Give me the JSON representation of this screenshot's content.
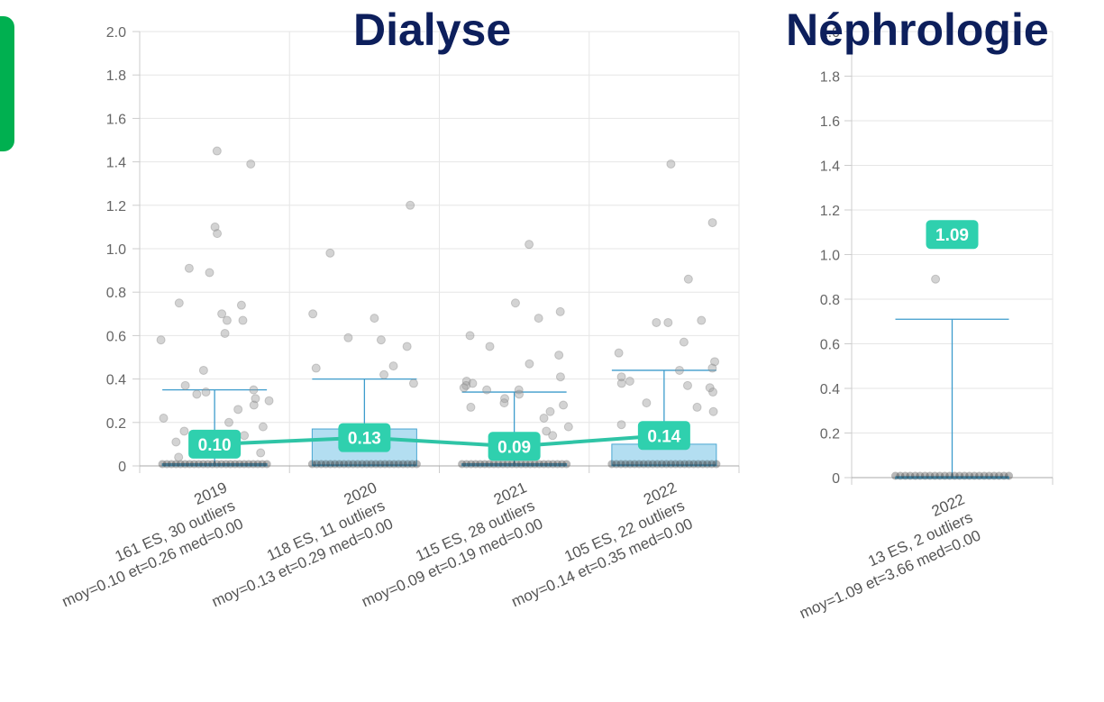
{
  "chart_data": [
    {
      "type": "box",
      "title": "Dialyse",
      "ylim": [
        0,
        2.0
      ],
      "yticks": [
        "0",
        "0.2",
        "0.4",
        "0.6",
        "0.8",
        "1.0",
        "1.2",
        "1.4",
        "1.6",
        "1.8",
        "2.0"
      ],
      "grid": true,
      "categories": [
        {
          "year": "2019",
          "line1": "161 ES, 30 outliers",
          "line2": "moy=0.10 et=0.26 med=0.00",
          "mean": 0.1,
          "mean_label": "0.10",
          "box_q3": 0.01,
          "whisker_high": 0.35,
          "outliers": [
            0.75,
            0.74,
            0.7,
            0.89,
            0.91,
            1.39,
            0.67,
            1.1,
            1.07,
            1.45,
            0.58,
            0.61,
            0.67,
            0.44,
            0.35,
            0.33,
            0.34,
            0.37,
            0.3,
            0.26,
            0.31,
            0.28,
            0.22,
            0.2,
            0.18,
            0.16,
            0.14,
            0.11,
            0.06,
            0.04
          ]
        },
        {
          "year": "2020",
          "line1": "118 ES, 11 outliers",
          "line2": "moy=0.13 et=0.29 med=0.00",
          "mean": 0.13,
          "mean_label": "0.13",
          "box_q3": 0.17,
          "whisker_high": 0.4,
          "outliers": [
            0.68,
            0.7,
            0.59,
            0.55,
            0.98,
            1.2,
            0.58,
            0.46,
            0.45,
            0.42,
            0.38
          ]
        },
        {
          "year": "2021",
          "line1": "115 ES, 28 outliers",
          "line2": "moy=0.09 et=0.19 med=0.00",
          "mean": 0.09,
          "mean_label": "0.09",
          "box_q3": 0.01,
          "whisker_high": 0.34,
          "outliers": [
            1.02,
            0.75,
            0.71,
            0.68,
            0.6,
            0.55,
            0.51,
            0.47,
            0.41,
            0.39,
            0.38,
            0.37,
            0.36,
            0.35,
            0.35,
            0.33,
            0.31,
            0.29,
            0.28,
            0.27,
            0.25,
            0.22,
            0.18,
            0.16,
            0.14,
            0.12,
            0.1,
            0.08
          ]
        },
        {
          "year": "2022",
          "line1": "105 ES, 22 outliers",
          "line2": "moy=0.14 et=0.35 med=0.00",
          "mean": 0.14,
          "mean_label": "0.14",
          "box_q3": 0.1,
          "whisker_high": 0.44,
          "outliers": [
            1.39,
            1.12,
            0.86,
            0.66,
            0.66,
            0.67,
            0.57,
            0.52,
            0.48,
            0.45,
            0.44,
            0.41,
            0.39,
            0.38,
            0.37,
            0.36,
            0.34,
            0.29,
            0.27,
            0.25,
            0.19,
            0.16
          ]
        }
      ]
    },
    {
      "type": "box",
      "title": "Néphrologie",
      "ylim": [
        0,
        2.0
      ],
      "yticks": [
        "0",
        "0.2",
        "0.4",
        "0.6",
        "0.8",
        "1.0",
        "1.2",
        "1.4",
        "1.6",
        "1.8",
        "2.0"
      ],
      "grid": true,
      "categories": [
        {
          "year": "2022",
          "line1": "13 ES, 2 outliers",
          "line2": "moy=1.09 et=3.66 med=0.00",
          "mean": 1.09,
          "mean_label": "1.09",
          "box_q3": 0.0,
          "whisker_high": 0.71,
          "outliers": [
            0.89
          ]
        }
      ]
    }
  ]
}
